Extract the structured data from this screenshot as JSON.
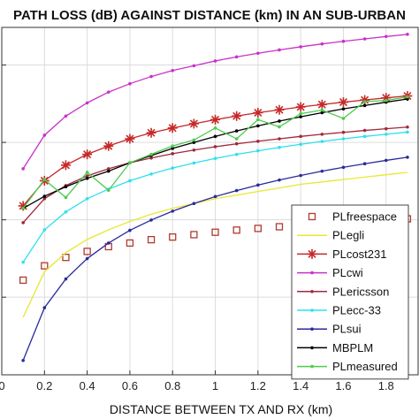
{
  "chart_data": {
    "type": "line",
    "title": "PATH LOSS (dB) AGAINST DISTANCE (km) IN AN SUB-URBAN",
    "xlabel": "DISTANCE BETWEEN TX AND RX (km)",
    "ylabel": "",
    "xlim": [
      0,
      1.95
    ],
    "ylim": [
      60,
      205
    ],
    "x_ticks": [
      "0",
      "0.2",
      "0.4",
      "0.6",
      "0.8",
      "1",
      "1.2",
      "1.4",
      "1.6",
      "1.8"
    ],
    "grid": true,
    "legend_position": "lower-right",
    "series": [
      {
        "name": "PLfreespace",
        "color": "#b03a2e",
        "marker": "square-open",
        "x": [
          0.1,
          0.2,
          0.3,
          0.4,
          0.5,
          0.6,
          0.7,
          0.8,
          0.9,
          1.0,
          1.1,
          1.2,
          1.3,
          1.4,
          1.5,
          1.6,
          1.7,
          1.8,
          1.9
        ],
        "y": [
          99.5,
          105.5,
          109.0,
          111.5,
          113.5,
          115.0,
          116.4,
          117.5,
          118.5,
          119.5,
          120.4,
          121.1,
          121.8,
          122.5,
          123.1,
          123.6,
          124.2,
          124.6,
          125.1
        ]
      },
      {
        "name": "PLegli",
        "color": "#e8e830",
        "marker": "none",
        "x": [
          0.1,
          0.2,
          0.3,
          0.4,
          0.5,
          0.6,
          0.7,
          0.8,
          0.9,
          1.0,
          1.1,
          1.2,
          1.3,
          1.4,
          1.5,
          1.6,
          1.7,
          1.8,
          1.9
        ],
        "y": [
          84.0,
          103.0,
          111.0,
          116.5,
          120.5,
          124.0,
          127.0,
          129.5,
          131.5,
          133.5,
          135.0,
          136.5,
          138.0,
          139.5,
          140.5,
          141.5,
          142.5,
          143.5,
          144.5
        ]
      },
      {
        "name": "PLcost231",
        "color": "#c62828",
        "marker": "star",
        "x": [
          0.1,
          0.2,
          0.3,
          0.4,
          0.5,
          0.6,
          0.7,
          0.8,
          0.9,
          1.0,
          1.1,
          1.2,
          1.3,
          1.4,
          1.5,
          1.6,
          1.7,
          1.8,
          1.9
        ],
        "y": [
          130.5,
          141.0,
          147.5,
          152.0,
          155.5,
          158.5,
          161.0,
          163.0,
          164.8,
          166.5,
          168.0,
          169.4,
          170.6,
          171.8,
          172.8,
          173.8,
          174.7,
          175.6,
          176.4
        ]
      },
      {
        "name": "PLcwi",
        "color": "#c832c8",
        "marker": "dot",
        "x": [
          0.1,
          0.2,
          0.3,
          0.4,
          0.5,
          0.6,
          0.7,
          0.8,
          0.9,
          1.0,
          1.1,
          1.2,
          1.3,
          1.4,
          1.5,
          1.6,
          1.7,
          1.8,
          1.9
        ],
        "y": [
          146.0,
          160.0,
          168.0,
          173.5,
          178.0,
          181.5,
          184.5,
          187.0,
          189.0,
          191.0,
          192.7,
          194.2,
          195.6,
          196.9,
          198.1,
          199.2,
          200.2,
          201.2,
          202.1
        ]
      },
      {
        "name": "PLericsson",
        "color": "#a0283c",
        "marker": "dot",
        "x": [
          0.1,
          0.2,
          0.3,
          0.4,
          0.5,
          0.6,
          0.7,
          0.8,
          0.9,
          1.0,
          1.1,
          1.2,
          1.3,
          1.4,
          1.5,
          1.6,
          1.7,
          1.8,
          1.9
        ],
        "y": [
          123.5,
          133.5,
          139.0,
          143.0,
          146.0,
          148.5,
          150.5,
          152.3,
          153.8,
          155.2,
          156.4,
          157.5,
          158.5,
          159.5,
          160.4,
          161.2,
          162.0,
          162.7,
          163.4
        ]
      },
      {
        "name": "PLecc-33",
        "color": "#2ee0ee",
        "marker": "dot",
        "x": [
          0.1,
          0.2,
          0.3,
          0.4,
          0.5,
          0.6,
          0.7,
          0.8,
          0.9,
          1.0,
          1.1,
          1.2,
          1.3,
          1.4,
          1.5,
          1.6,
          1.7,
          1.8,
          1.9
        ],
        "y": [
          107.0,
          120.5,
          128.0,
          133.5,
          137.5,
          141.0,
          143.8,
          146.3,
          148.4,
          150.3,
          152.0,
          153.5,
          154.9,
          156.2,
          157.4,
          158.5,
          159.5,
          160.4,
          161.3
        ]
      },
      {
        "name": "PLsui",
        "color": "#2a2a9a",
        "marker": "dot",
        "x": [
          0.1,
          0.2,
          0.3,
          0.4,
          0.5,
          0.6,
          0.7,
          0.8,
          0.9,
          1.0,
          1.1,
          1.2,
          1.3,
          1.4,
          1.5,
          1.6,
          1.7,
          1.8,
          1.9
        ],
        "y": [
          66.0,
          88.0,
          100.0,
          108.5,
          115.0,
          120.3,
          124.6,
          128.3,
          131.5,
          134.4,
          136.9,
          139.2,
          141.3,
          143.2,
          145.0,
          146.6,
          148.1,
          149.5,
          150.8
        ]
      },
      {
        "name": "MBPLM",
        "color": "#000000",
        "marker": "dot",
        "x": [
          0.1,
          0.2,
          0.3,
          0.4,
          0.5,
          0.6,
          0.7,
          0.8,
          0.9,
          1.0,
          1.1,
          1.2,
          1.3,
          1.4,
          1.5,
          1.6,
          1.7,
          1.8,
          1.9
        ],
        "y": [
          129.5,
          134.5,
          138.5,
          142.0,
          145.0,
          148.5,
          151.5,
          154.5,
          157.0,
          159.5,
          161.8,
          163.9,
          165.9,
          167.7,
          169.4,
          171.0,
          172.4,
          173.8,
          175.1
        ]
      },
      {
        "name": "PLmeasured",
        "color": "#4ccc4c",
        "marker": "dot",
        "x": [
          0.1,
          0.2,
          0.3,
          0.4,
          0.5,
          0.6,
          0.7,
          0.8,
          0.9,
          1.0,
          1.1,
          1.2,
          1.3,
          1.4,
          1.5,
          1.6,
          1.7,
          1.8,
          1.9
        ],
        "y": [
          129.5,
          141.5,
          134.0,
          144.5,
          137.0,
          148.5,
          152.0,
          155.5,
          158.0,
          163.0,
          158.5,
          166.5,
          163.5,
          169.0,
          170.5,
          167.0,
          174.0,
          174.5,
          176.0
        ]
      }
    ]
  }
}
